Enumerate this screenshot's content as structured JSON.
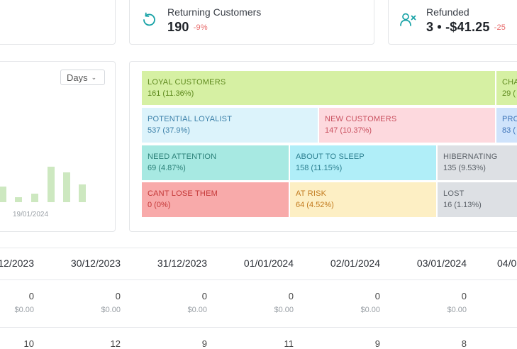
{
  "kpis": {
    "returning": {
      "title": "Returning Customers",
      "value": "190",
      "change": "-9%",
      "icon": "refresh-icon"
    },
    "refunded": {
      "title": "Refunded",
      "value": "3 • -$41.25",
      "change": "-25",
      "icon": "user-remove-icon"
    }
  },
  "chart": {
    "period_select": "Days",
    "chart_data": {
      "type": "bar",
      "x_tick_label": "19/01/2024",
      "values": [
        0.22,
        0.07,
        0.12,
        0.5,
        0.42,
        0.25
      ],
      "color": "#cde8c0"
    }
  },
  "rfm": {
    "segments": [
      {
        "name": "LOYAL CUSTOMERS",
        "value": "161 (11.36%)",
        "bg": "#d6f0a3",
        "fg": "#5f8a1f"
      },
      {
        "name": "CHA",
        "value": "29 (",
        "bg": "#d6f0a3",
        "fg": "#5f8a1f"
      },
      {
        "name": "POTENTIAL LOYALIST",
        "value": "537 (37.9%)",
        "bg": "#dcf3fb",
        "fg": "#3a7fa8"
      },
      {
        "name": "NEW CUSTOMERS",
        "value": "147 (10.37%)",
        "bg": "#fdd9de",
        "fg": "#c9505f"
      },
      {
        "name": "PRO",
        "value": "83 (",
        "bg": "#cfe3fb",
        "fg": "#3d73b8"
      },
      {
        "name": "NEED ATTENTION",
        "value": "69 (4.87%)",
        "bg": "#a7e9e2",
        "fg": "#2a7f77"
      },
      {
        "name": "ABOUT TO SLEEP",
        "value": "158 (11.15%)",
        "bg": "#b0eef8",
        "fg": "#2b7f90"
      },
      {
        "name": "HIBERNATING",
        "value": "135 (9.53%)",
        "bg": "#dde0e4",
        "fg": "#5b6168"
      },
      {
        "name": "CANT LOSE THEM",
        "value": "0 (0%)",
        "bg": "#f8aaaa",
        "fg": "#c43737"
      },
      {
        "name": "AT RISK",
        "value": "64 (4.52%)",
        "bg": "#fdefc4",
        "fg": "#c27a1d"
      },
      {
        "name": "LOST",
        "value": "16 (1.13%)",
        "bg": "#dde0e4",
        "fg": "#5b6168"
      }
    ]
  },
  "table": {
    "columns": [
      {
        "date": "12/2023",
        "count": "0",
        "amount": "",
        "orders": "10"
      },
      {
        "date": "30/12/2023",
        "count": "0",
        "amount": "$0.00",
        "orders": "12"
      },
      {
        "date": "31/12/2023",
        "count": "0",
        "amount": "$0.00",
        "orders": "9"
      },
      {
        "date": "01/01/2024",
        "count": "0",
        "amount": "$0.00",
        "orders": "11"
      },
      {
        "date": "02/01/2024",
        "count": "0",
        "amount": "$0.00",
        "orders": "9"
      },
      {
        "date": "03/01/2024",
        "count": "0",
        "amount": "$0.00",
        "orders": "8"
      },
      {
        "date": "04/0",
        "count": "",
        "amount": "",
        "orders": ""
      }
    ],
    "first_col_count": "0",
    "first_col_amount": "$0.00"
  }
}
